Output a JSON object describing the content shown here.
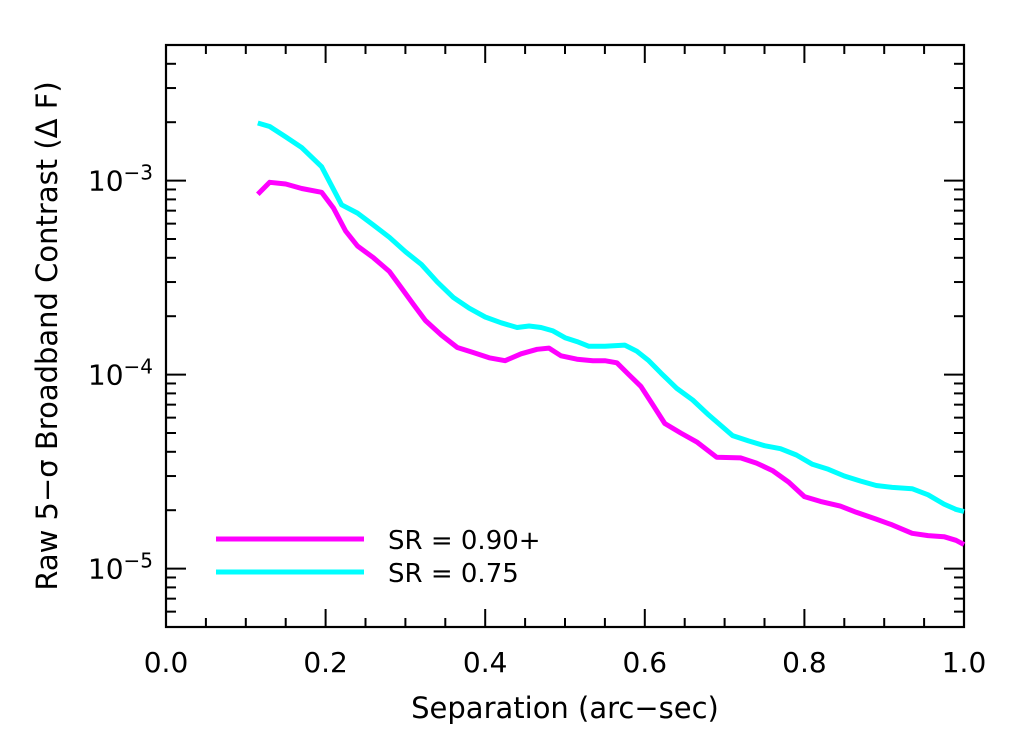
{
  "chart_data": {
    "type": "line",
    "xlabel": "Separation (arc−sec)",
    "ylabel": "Raw 5−σ Broadband Contrast (Δ F)",
    "xlim": [
      0.0,
      1.0
    ],
    "ylim": [
      5e-06,
      0.005
    ],
    "yscale": "log",
    "x_ticks": [
      {
        "value": 0.0,
        "label": "0.0"
      },
      {
        "value": 0.2,
        "label": "0.2"
      },
      {
        "value": 0.4,
        "label": "0.4"
      },
      {
        "value": 0.6,
        "label": "0.6"
      },
      {
        "value": 0.8,
        "label": "0.8"
      },
      {
        "value": 1.0,
        "label": "1.0"
      }
    ],
    "y_ticks": [
      {
        "value": 1e-05,
        "base": "10",
        "exp": "−5"
      },
      {
        "value": 0.0001,
        "base": "10",
        "exp": "−4"
      },
      {
        "value": 0.001,
        "base": "10",
        "exp": "−3"
      }
    ],
    "legend_position": "bottom-left",
    "series": [
      {
        "name": "SR = 0.90+",
        "color": "#ff00ff",
        "points": [
          [
            0.115,
            0.00085
          ],
          [
            0.13,
            0.00098
          ],
          [
            0.15,
            0.00096
          ],
          [
            0.17,
            0.00091
          ],
          [
            0.195,
            0.00087
          ],
          [
            0.21,
            0.00072
          ],
          [
            0.225,
            0.00055
          ],
          [
            0.24,
            0.00046
          ],
          [
            0.26,
            0.0004
          ],
          [
            0.28,
            0.00034
          ],
          [
            0.295,
            0.00028
          ],
          [
            0.31,
            0.00023
          ],
          [
            0.325,
            0.00019
          ],
          [
            0.345,
            0.00016
          ],
          [
            0.365,
            0.000138
          ],
          [
            0.385,
            0.00013
          ],
          [
            0.405,
            0.000122
          ],
          [
            0.425,
            0.000118
          ],
          [
            0.445,
            0.000128
          ],
          [
            0.465,
            0.000135
          ],
          [
            0.48,
            0.000137
          ],
          [
            0.495,
            0.000125
          ],
          [
            0.515,
            0.00012
          ],
          [
            0.535,
            0.000118
          ],
          [
            0.55,
            0.000118
          ],
          [
            0.565,
            0.000115
          ],
          [
            0.58,
            0.0001
          ],
          [
            0.595,
            8.7e-05
          ],
          [
            0.61,
            7e-05
          ],
          [
            0.625,
            5.6e-05
          ],
          [
            0.645,
            5e-05
          ],
          [
            0.665,
            4.5e-05
          ],
          [
            0.69,
            3.75e-05
          ],
          [
            0.72,
            3.72e-05
          ],
          [
            0.74,
            3.5e-05
          ],
          [
            0.76,
            3.2e-05
          ],
          [
            0.78,
            2.8e-05
          ],
          [
            0.8,
            2.35e-05
          ],
          [
            0.82,
            2.22e-05
          ],
          [
            0.845,
            2.1e-05
          ],
          [
            0.865,
            1.95e-05
          ],
          [
            0.89,
            1.8e-05
          ],
          [
            0.91,
            1.68e-05
          ],
          [
            0.935,
            1.52e-05
          ],
          [
            0.955,
            1.48e-05
          ],
          [
            0.975,
            1.46e-05
          ],
          [
            0.99,
            1.4e-05
          ],
          [
            1.0,
            1.33e-05
          ]
        ]
      },
      {
        "name": "SR = 0.75",
        "color": "#00ffff",
        "points": [
          [
            0.115,
            0.00198
          ],
          [
            0.13,
            0.0019
          ],
          [
            0.15,
            0.00168
          ],
          [
            0.17,
            0.00148
          ],
          [
            0.195,
            0.00118
          ],
          [
            0.22,
            0.00075
          ],
          [
            0.24,
            0.00068
          ],
          [
            0.26,
            0.00059
          ],
          [
            0.28,
            0.00051
          ],
          [
            0.3,
            0.00043
          ],
          [
            0.32,
            0.00037
          ],
          [
            0.34,
            0.0003
          ],
          [
            0.36,
            0.00025
          ],
          [
            0.38,
            0.00022
          ],
          [
            0.4,
            0.000198
          ],
          [
            0.42,
            0.000185
          ],
          [
            0.44,
            0.000175
          ],
          [
            0.455,
            0.000178
          ],
          [
            0.47,
            0.000175
          ],
          [
            0.485,
            0.000168
          ],
          [
            0.5,
            0.000155
          ],
          [
            0.515,
            0.000148
          ],
          [
            0.53,
            0.00014
          ],
          [
            0.55,
            0.00014
          ],
          [
            0.575,
            0.000142
          ],
          [
            0.59,
            0.000132
          ],
          [
            0.605,
            0.000118
          ],
          [
            0.62,
            0.000102
          ],
          [
            0.64,
            8.5e-05
          ],
          [
            0.66,
            7.4e-05
          ],
          [
            0.68,
            6.2e-05
          ],
          [
            0.71,
            4.85e-05
          ],
          [
            0.73,
            4.55e-05
          ],
          [
            0.75,
            4.3e-05
          ],
          [
            0.77,
            4.15e-05
          ],
          [
            0.79,
            3.85e-05
          ],
          [
            0.81,
            3.45e-05
          ],
          [
            0.83,
            3.25e-05
          ],
          [
            0.85,
            3e-05
          ],
          [
            0.87,
            2.83e-05
          ],
          [
            0.89,
            2.68e-05
          ],
          [
            0.91,
            2.62e-05
          ],
          [
            0.935,
            2.58e-05
          ],
          [
            0.955,
            2.4e-05
          ],
          [
            0.975,
            2.15e-05
          ],
          [
            0.99,
            2.02e-05
          ],
          [
            1.0,
            1.97e-05
          ]
        ]
      }
    ]
  }
}
